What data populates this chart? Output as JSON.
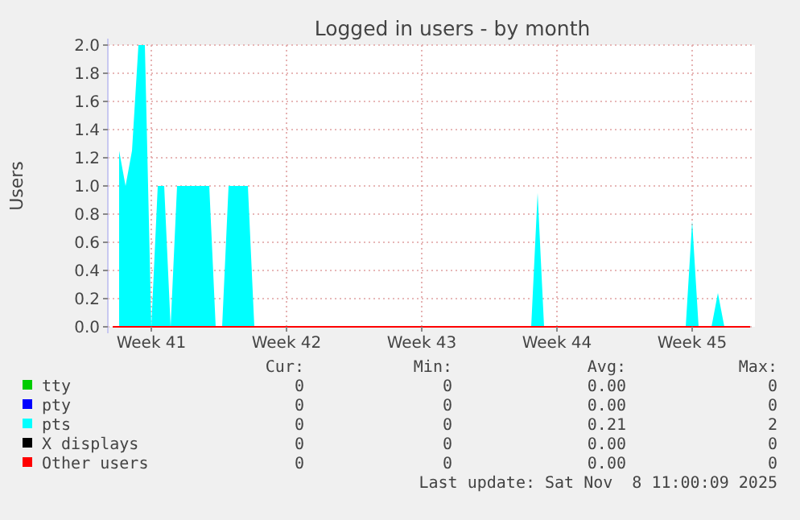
{
  "chart_data": {
    "type": "area",
    "title": "Logged in users - by month",
    "ylabel": "Users",
    "categories": [
      null,
      null,
      null,
      null,
      null,
      null,
      "Week 41",
      null,
      null,
      null,
      null,
      null,
      null,
      null,
      null,
      null,
      null,
      null,
      null,
      null,
      null,
      null,
      null,
      null,
      null,
      null,
      null,
      "Week 42",
      null,
      null,
      null,
      null,
      null,
      null,
      null,
      null,
      null,
      null,
      null,
      null,
      null,
      null,
      null,
      null,
      null,
      null,
      null,
      null,
      "Week 43",
      null,
      null,
      null,
      null,
      null,
      null,
      null,
      null,
      null,
      null,
      null,
      null,
      null,
      null,
      null,
      null,
      null,
      null,
      null,
      null,
      "Week 44",
      null,
      null,
      null,
      null,
      null,
      null,
      null,
      null,
      null,
      null,
      null,
      null,
      null,
      null,
      null,
      null,
      null,
      null,
      null,
      null,
      "Week 45",
      null,
      null,
      null,
      null,
      null,
      null,
      null,
      null,
      null
    ],
    "ylim": [
      0,
      2
    ],
    "yticks": [
      {
        "value": 0,
        "label": "0.0"
      },
      {
        "value": 0.2,
        "label": "0.2"
      },
      {
        "value": 0.4,
        "label": "0.4"
      },
      {
        "value": 0.6,
        "label": "0.6"
      },
      {
        "value": 0.8,
        "label": "0.8"
      },
      {
        "value": 1,
        "label": "1.0"
      },
      {
        "value": 1.2,
        "label": "1.2"
      },
      {
        "value": 1.4,
        "label": "1.4"
      },
      {
        "value": 1.6,
        "label": "1.6"
      },
      {
        "value": 1.8,
        "label": "1.8"
      },
      {
        "value": 2,
        "label": "2.0"
      }
    ],
    "grid": true,
    "legend": "bottom",
    "series": [
      {
        "name": "tty",
        "color": "#00cc00",
        "values": [
          null,
          null,
          null,
          null,
          null,
          null,
          null,
          null,
          null,
          null,
          null,
          null,
          null,
          null,
          null,
          null,
          null,
          null,
          null,
          null,
          null,
          null,
          null,
          null,
          null,
          null,
          null,
          null,
          null,
          null,
          null,
          null,
          null,
          null,
          null,
          null,
          null,
          null,
          null,
          null,
          null,
          null,
          null,
          null,
          null,
          null,
          null,
          null,
          null,
          null,
          null,
          null,
          null,
          null,
          null,
          null,
          null,
          null,
          null,
          null,
          null,
          null,
          null,
          null,
          null,
          null,
          null,
          null,
          null,
          null,
          null,
          null,
          null,
          null,
          null,
          null,
          null,
          null,
          null,
          null,
          null,
          null,
          null,
          null,
          null,
          null,
          null,
          null,
          null,
          null,
          null,
          null,
          null,
          null,
          null,
          null,
          null,
          null,
          null,
          null
        ]
      },
      {
        "name": "pty",
        "color": "#0000ff",
        "values": [
          null,
          null,
          null,
          null,
          null,
          null,
          null,
          null,
          null,
          null,
          null,
          null,
          null,
          null,
          null,
          null,
          null,
          null,
          null,
          null,
          null,
          null,
          null,
          null,
          null,
          null,
          null,
          null,
          null,
          null,
          null,
          null,
          null,
          null,
          null,
          null,
          null,
          null,
          null,
          null,
          null,
          null,
          null,
          null,
          null,
          null,
          null,
          null,
          null,
          null,
          null,
          null,
          null,
          null,
          null,
          null,
          null,
          null,
          null,
          null,
          null,
          null,
          null,
          null,
          null,
          null,
          null,
          null,
          null,
          null,
          null,
          null,
          null,
          null,
          null,
          null,
          null,
          null,
          null,
          null,
          null,
          null,
          null,
          null,
          null,
          null,
          null,
          null,
          null,
          null,
          null,
          null,
          null,
          null,
          null,
          null,
          null,
          null,
          null,
          null
        ]
      },
      {
        "name": "pts",
        "color": "#00ffff",
        "values": [
          null,
          1.25,
          1,
          1.25,
          2,
          2,
          0,
          1,
          1,
          0,
          1,
          1,
          1,
          1,
          1,
          1,
          0,
          0,
          1,
          1,
          1,
          1,
          0,
          0,
          0,
          0,
          0,
          0,
          0,
          0,
          0,
          0,
          0,
          0,
          0,
          0,
          0,
          0,
          0,
          0,
          0,
          0,
          0,
          0,
          0,
          0,
          0,
          0,
          0,
          0,
          0,
          0,
          0,
          0,
          0,
          0,
          0,
          0,
          0,
          0,
          0,
          0,
          0,
          0,
          0,
          0,
          0.95,
          0,
          0,
          0,
          0,
          0,
          0,
          0,
          0,
          0,
          0,
          0,
          0,
          0,
          0,
          0,
          0,
          0,
          0,
          0,
          0,
          0,
          0,
          0,
          0.75,
          0,
          0,
          0,
          0.24,
          0,
          0,
          0,
          0,
          0
        ]
      },
      {
        "name": "X displays",
        "color": "#000000",
        "values": [
          null,
          null,
          null,
          null,
          null,
          null,
          null,
          null,
          null,
          null,
          null,
          null,
          null,
          null,
          null,
          null,
          null,
          null,
          null,
          null,
          null,
          null,
          null,
          null,
          null,
          null,
          null,
          null,
          null,
          null,
          null,
          null,
          null,
          null,
          null,
          null,
          null,
          null,
          null,
          null,
          null,
          null,
          null,
          null,
          null,
          null,
          null,
          null,
          null,
          null,
          null,
          null,
          null,
          null,
          null,
          null,
          null,
          null,
          null,
          null,
          null,
          null,
          null,
          null,
          null,
          null,
          null,
          null,
          null,
          null,
          null,
          null,
          null,
          null,
          null,
          null,
          null,
          null,
          null,
          null,
          null,
          null,
          null,
          null,
          null,
          null,
          null,
          null,
          null,
          null,
          null,
          null,
          null,
          null,
          null,
          null,
          null,
          null,
          null,
          null
        ]
      },
      {
        "name": "Other users",
        "type": "line",
        "color": "#ff0000",
        "values": [
          0,
          0,
          0,
          0,
          0,
          0,
          0,
          0,
          0,
          0,
          0,
          0,
          0,
          0,
          0,
          0,
          0,
          0,
          0,
          0,
          0,
          0,
          0,
          0,
          0,
          0,
          0,
          0,
          0,
          0,
          0,
          0,
          0,
          0,
          0,
          0,
          0,
          0,
          0,
          0,
          0,
          0,
          0,
          0,
          0,
          0,
          0,
          0,
          0,
          0,
          0,
          0,
          0,
          0,
          0,
          0,
          0,
          0,
          0,
          0,
          0,
          0,
          0,
          0,
          0,
          0,
          0,
          0,
          0,
          0,
          0,
          0,
          0,
          0,
          0,
          0,
          0,
          0,
          0,
          0,
          0,
          0,
          0,
          0,
          0,
          0,
          0,
          0,
          0,
          0,
          0,
          0,
          0,
          0,
          0,
          0,
          0,
          0,
          0,
          0
        ]
      }
    ],
    "annotations": [
      "Cur:",
      "Min:",
      "Avg:",
      "Max:",
      "0",
      "0",
      "0.00",
      "0",
      "0",
      "0",
      "0.00",
      "0",
      "0",
      "0",
      "0.21",
      "2",
      "0",
      "0",
      "0.00",
      "0",
      "0",
      "0",
      "0.00",
      "0",
      "Last update: Sat Nov  8 11:00:09 2025"
    ]
  }
}
